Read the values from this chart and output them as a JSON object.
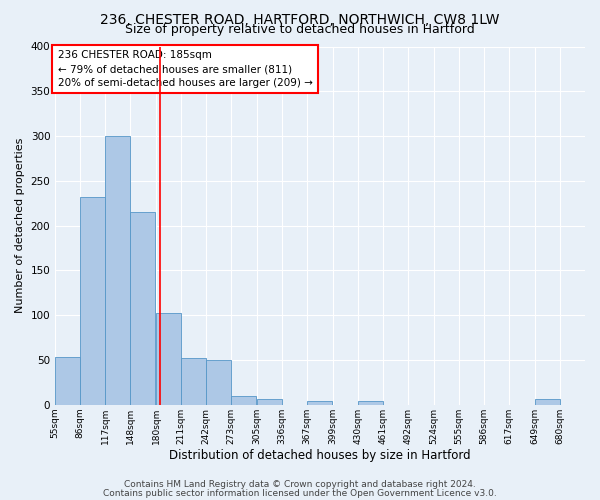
{
  "title1": "236, CHESTER ROAD, HARTFORD, NORTHWICH, CW8 1LW",
  "title2": "Size of property relative to detached houses in Hartford",
  "xlabel": "Distribution of detached houses by size in Hartford",
  "ylabel": "Number of detached properties",
  "bin_labels": [
    "55sqm",
    "86sqm",
    "117sqm",
    "148sqm",
    "180sqm",
    "211sqm",
    "242sqm",
    "273sqm",
    "305sqm",
    "336sqm",
    "367sqm",
    "399sqm",
    "430sqm",
    "461sqm",
    "492sqm",
    "524sqm",
    "555sqm",
    "586sqm",
    "617sqm",
    "649sqm",
    "680sqm"
  ],
  "bin_edges": [
    55,
    86,
    117,
    148,
    180,
    211,
    242,
    273,
    305,
    336,
    367,
    399,
    430,
    461,
    492,
    524,
    555,
    586,
    617,
    649,
    680
  ],
  "bar_heights": [
    53,
    232,
    300,
    215,
    103,
    52,
    50,
    10,
    6,
    0,
    4,
    0,
    4,
    0,
    0,
    0,
    0,
    0,
    0,
    6,
    0
  ],
  "bar_color": "#adc8e6",
  "bar_edgecolor": "#5596c8",
  "reference_line_x": 185,
  "reference_line_color": "red",
  "ylim": [
    0,
    400
  ],
  "yticks": [
    0,
    50,
    100,
    150,
    200,
    250,
    300,
    350,
    400
  ],
  "annotation_box_text": [
    "236 CHESTER ROAD: 185sqm",
    "← 79% of detached houses are smaller (811)",
    "20% of semi-detached houses are larger (209) →"
  ],
  "annotation_box_color": "white",
  "annotation_box_edgecolor": "red",
  "footer1": "Contains HM Land Registry data © Crown copyright and database right 2024.",
  "footer2": "Contains public sector information licensed under the Open Government Licence v3.0.",
  "bg_color": "#e8f0f8",
  "plot_bg_color": "#e8f0f8",
  "title1_fontsize": 10,
  "title2_fontsize": 9,
  "ylabel_fontsize": 8,
  "xlabel_fontsize": 8.5,
  "annotation_fontsize": 7.5,
  "tick_fontsize": 6.5,
  "ytick_fontsize": 7.5,
  "footer_fontsize": 6.5
}
